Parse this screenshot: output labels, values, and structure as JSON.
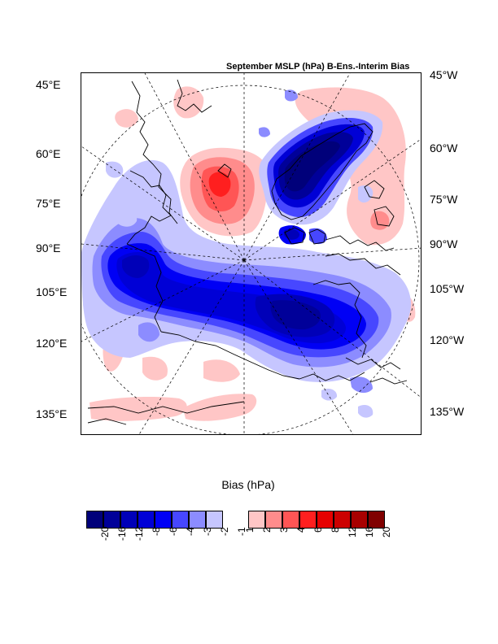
{
  "title": "September MSLP (hPa) B-Ens.-Interim Bias",
  "left_labels": [
    "45°E",
    "60°E",
    "75°E",
    "90°E",
    "105°E",
    "120°E",
    "135°E"
  ],
  "right_labels": [
    "45°W",
    "60°W",
    "75°W",
    "90°W",
    "105°W",
    "120°W",
    "135°W"
  ],
  "colorbar": {
    "title": "Bias (hPa)",
    "colors": [
      "#00007a",
      "#000099",
      "#0000b8",
      "#0000d6",
      "#0000f5",
      "#4747ff",
      "#8c8cff",
      "#c6c6ff",
      "#ffffff",
      "#ffc6c6",
      "#ff8c8c",
      "#ff5555",
      "#ff1f1f",
      "#e60000",
      "#cc0000",
      "#a80000",
      "#800000"
    ],
    "labels": [
      "-20",
      "-16",
      "-12",
      "-8",
      "-6",
      "-4",
      "-3",
      "-2",
      "-1",
      "1",
      "2",
      "3",
      "4",
      "6",
      "8",
      "12",
      "16",
      "20"
    ]
  },
  "palette": {
    "neg_1": "#c6c6ff",
    "neg_2": "#8c8cff",
    "neg_3": "#4747ff",
    "neg_4": "#0000f5",
    "neg_5": "#0000d6",
    "neg_6": "#0000b8",
    "neg_7": "#000099",
    "neg_8": "#00007a",
    "pos_1": "#ffc6c6",
    "pos_2": "#ff8c8c",
    "pos_3": "#ff5555",
    "pos_4": "#ff1f1f",
    "pos_5": "#e60000"
  }
}
